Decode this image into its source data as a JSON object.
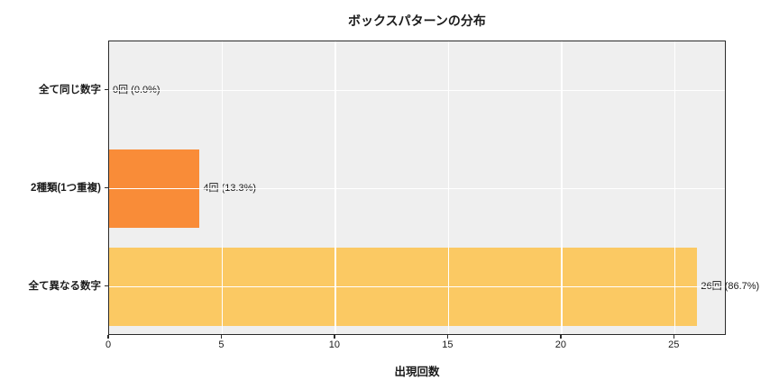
{
  "chart_data": {
    "type": "bar",
    "orientation": "horizontal",
    "title": "ボックスパターンの分布",
    "xlabel": "出現回数",
    "ylabel": "",
    "categories": [
      "全て同じ数字",
      "2種類(1つ重複)",
      "全て異なる数字"
    ],
    "values": [
      0,
      4,
      26
    ],
    "value_labels": [
      "0回 (0.0%)",
      "4回 (13.3%)",
      "26回 (86.7%)"
    ],
    "bar_colors": [
      "#f98c38",
      "#f98c38",
      "#fbc963"
    ],
    "xticks": [
      0,
      5,
      10,
      15,
      20,
      25
    ],
    "xtick_labels": [
      "0",
      "5",
      "10",
      "15",
      "20",
      "25"
    ],
    "xlim": [
      0,
      27.3
    ],
    "grid": true,
    "grid_color": "#ffffff",
    "plot_bg_color": "#efefef",
    "spine_color": "#2b2b2b",
    "text_color": "#1a1a1a",
    "legend": null
  }
}
